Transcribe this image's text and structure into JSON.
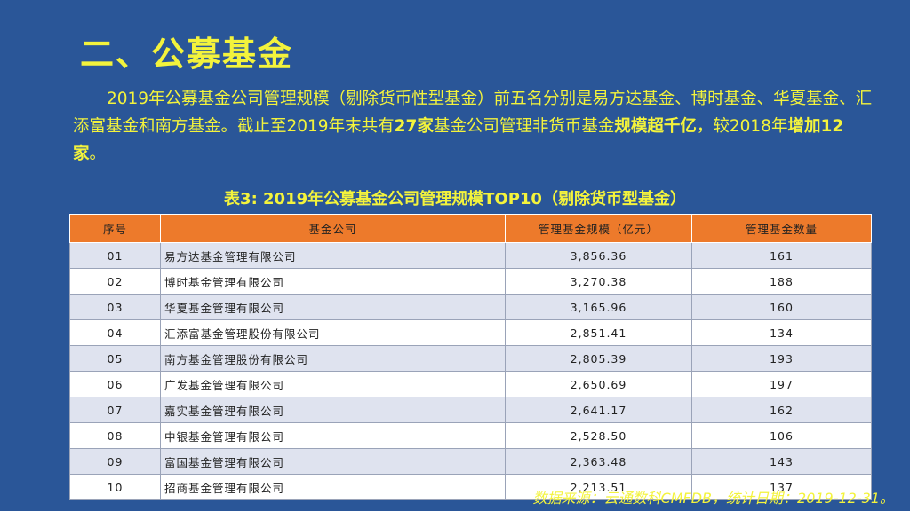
{
  "slide": {
    "title": "二、公募基金",
    "paragraph": {
      "p1": "2019年公募基金公司管理规模（剔除货币性型基金）前五名分别是易方达基金、博时基金、华夏基金、汇添富基金和南方基金。截止至2019年末共有",
      "p2": "27家",
      "p3": "基金公司管理非货币基金",
      "p4": "规模超千亿",
      "p5": "，较2018年",
      "p6": "增加12家",
      "p7": "。"
    },
    "table_caption": "表3: 2019年公募基金公司管理规模TOP10（剔除货币型基金）",
    "source": "数据来源：云通数科CMFDB，统计日期：2019-12-31。"
  },
  "table": {
    "headers": [
      "序号",
      "基金公司",
      "管理基金规模（亿元）",
      "管理基金数量"
    ],
    "rows": [
      {
        "rank": "01",
        "name": "易方达基金管理有限公司",
        "aum": "3,856.36",
        "count": "161"
      },
      {
        "rank": "02",
        "name": "博时基金管理有限公司",
        "aum": "3,270.38",
        "count": "188"
      },
      {
        "rank": "03",
        "name": "华夏基金管理有限公司",
        "aum": "3,165.96",
        "count": "160"
      },
      {
        "rank": "04",
        "name": "汇添富基金管理股份有限公司",
        "aum": "2,851.41",
        "count": "134"
      },
      {
        "rank": "05",
        "name": "南方基金管理股份有限公司",
        "aum": "2,805.39",
        "count": "193"
      },
      {
        "rank": "06",
        "name": "广发基金管理有限公司",
        "aum": "2,650.69",
        "count": "197"
      },
      {
        "rank": "07",
        "name": "嘉实基金管理有限公司",
        "aum": "2,641.17",
        "count": "162"
      },
      {
        "rank": "08",
        "name": "中银基金管理有限公司",
        "aum": "2,528.50",
        "count": "106"
      },
      {
        "rank": "09",
        "name": "富国基金管理有限公司",
        "aum": "2,363.48",
        "count": "143"
      },
      {
        "rank": "10",
        "name": "招商基金管理有限公司",
        "aum": "2,213.51",
        "count": "137"
      }
    ]
  },
  "colors": {
    "background": "#2a5698",
    "text_accent": "#f3f33c",
    "header_fill": "#ed7a2b",
    "row_alt_fill": "#dfe3ef"
  }
}
